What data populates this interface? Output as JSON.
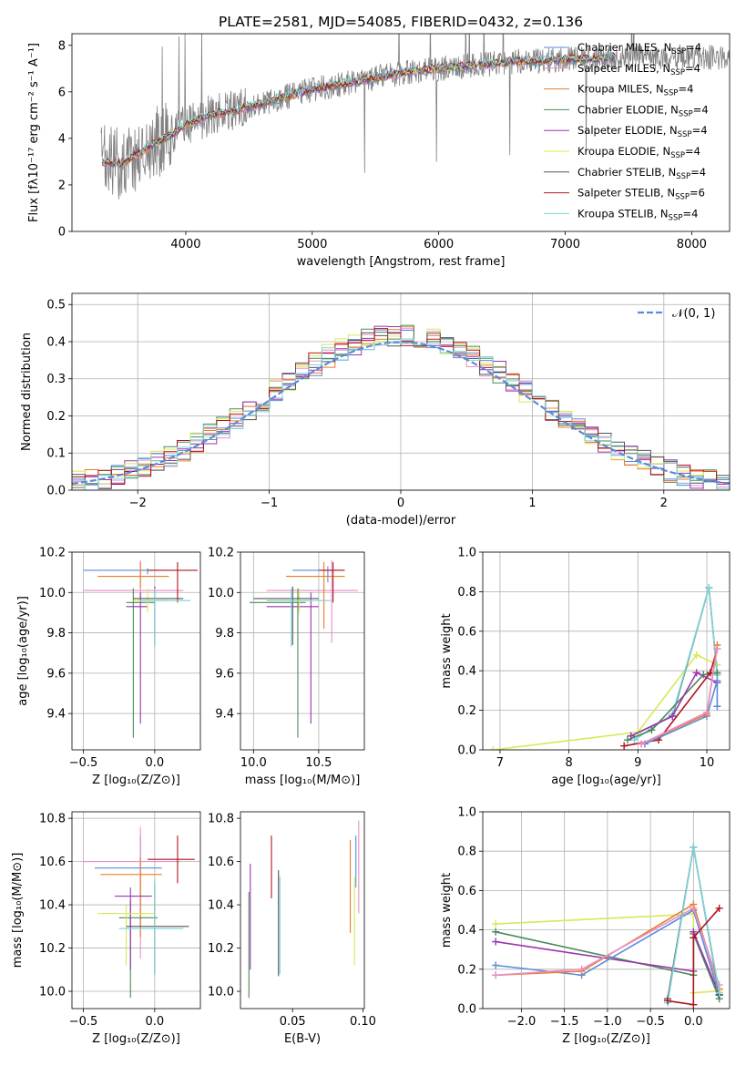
{
  "chart_data": [
    {
      "type": "line",
      "title": "PLATE=2581, MJD=54085, FIBERID=0432, z=0.136",
      "xlabel": "wavelength [Angstrom, rest frame]",
      "ylabel": "Flux [fλ10⁻¹⁷ erg cm⁻² s⁻¹ A⁻¹]",
      "xlim": [
        3100,
        8300
      ],
      "ylim": [
        0,
        8.5
      ],
      "xticks": [
        4000,
        5000,
        6000,
        7000,
        8000
      ],
      "yticks": [
        0,
        2,
        4,
        6,
        8
      ],
      "data_color": "#808080",
      "model_x": [
        3340,
        3500,
        3700,
        3900,
        4000,
        4200,
        4400,
        4600,
        4800,
        5000,
        5200,
        5400,
        5600,
        5800,
        6000,
        6200,
        6400,
        6600,
        6800,
        7000,
        7200,
        7400
      ],
      "model_y": [
        3.0,
        2.9,
        3.6,
        4.2,
        4.6,
        5.0,
        5.2,
        5.5,
        5.8,
        6.1,
        6.3,
        6.5,
        6.7,
        6.9,
        7.0,
        7.1,
        7.2,
        7.3,
        7.3,
        7.4,
        7.4,
        7.5
      ],
      "legend": [
        {
          "label": "Chabrier MILES, N",
          "sub": "SSP",
          "tail": "=4",
          "color": "#5b8bd9"
        },
        {
          "label": "Salpeter MILES, N",
          "sub": "SSP",
          "tail": "=4",
          "color": "#e88fc8"
        },
        {
          "label": "Kroupa MILES, N",
          "sub": "SSP",
          "tail": "=4",
          "color": "#e87d28"
        },
        {
          "label": "Chabrier ELODIE, N",
          "sub": "SSP",
          "tail": "=4",
          "color": "#4a8a5a"
        },
        {
          "label": "Salpeter ELODIE, N",
          "sub": "SSP",
          "tail": "=4",
          "color": "#9a35b0"
        },
        {
          "label": "Kroupa ELODIE, N",
          "sub": "SSP",
          "tail": "=4",
          "color": "#d9e855"
        },
        {
          "label": "Chabrier STELIB, N",
          "sub": "SSP",
          "tail": "=4",
          "color": "#555555"
        },
        {
          "label": "Salpeter STELIB, N",
          "sub": "SSP",
          "tail": "=6",
          "color": "#b0141e"
        },
        {
          "label": "Kroupa STELIB, N",
          "sub": "SSP",
          "tail": "=4",
          "color": "#7dd4dc"
        }
      ]
    },
    {
      "type": "line",
      "xlabel": "(data-model)/error",
      "ylabel": "Normed distribution",
      "xlim": [
        -2.5,
        2.5
      ],
      "ylim": [
        0,
        0.53
      ],
      "xticks": [
        -2,
        -1,
        0,
        1,
        2
      ],
      "xtick_labels": [
        "−2",
        "−1",
        "0",
        "1",
        "2"
      ],
      "yticks": [
        0.0,
        0.1,
        0.2,
        0.3,
        0.4,
        0.5
      ],
      "ytick_labels": [
        "0.0",
        "0.1",
        "0.2",
        "0.3",
        "0.4",
        "0.5"
      ],
      "grid": true,
      "legend_label": "𝒩(0, 1)",
      "legend_position": "top-right",
      "reference_color": "#5b8bd9"
    },
    {
      "type": "scatter",
      "xlabel": "Z [log₁₀(Z/Z⊙)]",
      "ylabel": "age  [log₁₀(age/yr)]",
      "xlim": [
        -0.58,
        0.32
      ],
      "ylim": [
        9.22,
        10.2
      ],
      "xticks": [
        -0.5,
        0.0
      ],
      "xtick_labels": [
        "−0.5",
        "0.0"
      ],
      "yticks": [
        9.4,
        9.6,
        9.8,
        10.0,
        10.2
      ],
      "ytick_labels": [
        "9.4",
        "9.6",
        "9.8",
        "10.0",
        "10.2"
      ],
      "points": [
        {
          "x": -0.05,
          "y": 10.11,
          "xe": [
            -0.5,
            0.05
          ],
          "ye": [
            10.09,
            10.12
          ],
          "color": "#5b8bd9"
        },
        {
          "x": -0.1,
          "y": 10.01,
          "xe": [
            -0.5,
            0.2
          ],
          "ye": [
            9.96,
            10.16
          ],
          "color": "#e88fc8"
        },
        {
          "x": -0.1,
          "y": 10.08,
          "xe": [
            -0.4,
            0.1
          ],
          "ye": [
            10.02,
            10.15
          ],
          "color": "#e87d28"
        },
        {
          "x": -0.15,
          "y": 9.95,
          "xe": [
            -0.2,
            0.0
          ],
          "ye": [
            9.28,
            10.02
          ],
          "color": "#4a8a5a"
        },
        {
          "x": -0.1,
          "y": 9.93,
          "xe": [
            -0.2,
            -0.05
          ],
          "ye": [
            9.35,
            10.0
          ],
          "color": "#9a35b0"
        },
        {
          "x": -0.05,
          "y": 9.96,
          "xe": [
            -0.15,
            0.1
          ],
          "ye": [
            9.9,
            10.02
          ],
          "color": "#d9e855"
        },
        {
          "x": 0.0,
          "y": 9.97,
          "xe": [
            -0.15,
            0.2
          ],
          "ye": [
            9.74,
            10.03
          ],
          "color": "#555555"
        },
        {
          "x": 0.16,
          "y": 10.11,
          "xe": [
            -0.05,
            0.3
          ],
          "ye": [
            9.95,
            10.15
          ],
          "color": "#b0141e"
        },
        {
          "x": 0.0,
          "y": 9.96,
          "xe": [
            -0.1,
            0.25
          ],
          "ye": [
            9.73,
            10.02
          ],
          "color": "#7dd4dc"
        }
      ]
    },
    {
      "type": "scatter",
      "xlabel": "mass [log₁₀(M/M⊙)]",
      "xlim": [
        9.9,
        10.85
      ],
      "ylim": [
        9.22,
        10.2
      ],
      "xticks": [
        10.0,
        10.5
      ],
      "xtick_labels": [
        "10.0",
        "10.5"
      ],
      "yticks": [
        9.4,
        9.6,
        9.8,
        10.0,
        10.2
      ],
      "ytick_labels": [
        "9.4",
        "9.6",
        "9.8",
        "10.0",
        "10.2"
      ],
      "points": [
        {
          "x": 10.57,
          "y": 10.11,
          "xe": [
            10.3,
            10.7
          ],
          "ye": [
            10.05,
            10.13
          ],
          "color": "#5b8bd9"
        },
        {
          "x": 10.6,
          "y": 10.01,
          "xe": [
            10.1,
            10.8
          ],
          "ye": [
            9.75,
            10.16
          ],
          "color": "#e88fc8"
        },
        {
          "x": 10.54,
          "y": 10.08,
          "xe": [
            10.25,
            10.7
          ],
          "ye": [
            9.82,
            10.15
          ],
          "color": "#e87d28"
        },
        {
          "x": 10.34,
          "y": 9.95,
          "xe": [
            9.97,
            10.4
          ],
          "ye": [
            9.28,
            10.02
          ],
          "color": "#4a8a5a"
        },
        {
          "x": 10.44,
          "y": 9.93,
          "xe": [
            10.1,
            10.5
          ],
          "ye": [
            9.35,
            10.0
          ],
          "color": "#9a35b0"
        },
        {
          "x": 10.35,
          "y": 9.96,
          "xe": [
            10.1,
            10.45
          ],
          "ye": [
            9.9,
            10.02
          ],
          "color": "#d9e855"
        },
        {
          "x": 10.3,
          "y": 9.97,
          "xe": [
            10.0,
            10.5
          ],
          "ye": [
            9.74,
            10.03
          ],
          "color": "#555555"
        },
        {
          "x": 10.61,
          "y": 10.11,
          "xe": [
            10.5,
            10.7
          ],
          "ye": [
            9.95,
            10.15
          ],
          "color": "#b0141e"
        },
        {
          "x": 10.29,
          "y": 9.96,
          "xe": [
            10.1,
            10.6
          ],
          "ye": [
            9.73,
            10.02
          ],
          "color": "#7dd4dc"
        }
      ]
    },
    {
      "type": "line",
      "xlabel": "age  [log₁₀(age/yr)]",
      "ylabel": "mass weight",
      "xlim": [
        6.75,
        10.33
      ],
      "ylim": [
        0,
        1
      ],
      "xticks": [
        7,
        8,
        9,
        10
      ],
      "yticks": [
        0.0,
        0.2,
        0.4,
        0.6,
        0.8,
        1.0
      ],
      "ytick_labels": [
        "0.0",
        "0.2",
        "0.4",
        "0.6",
        "0.8",
        "1.0"
      ],
      "series": [
        {
          "color": "#d9e855",
          "x": [
            6.9,
            9.0,
            9.85,
            10.15
          ],
          "y": [
            0.0,
            0.09,
            0.48,
            0.43
          ]
        },
        {
          "color": "#555555",
          "x": [
            8.9,
            9.5,
            10.03,
            10.15
          ],
          "y": [
            0.07,
            0.17,
            0.82,
            0.38
          ]
        },
        {
          "color": "#7dd4dc",
          "x": [
            8.95,
            9.5,
            10.03,
            10.15
          ],
          "y": [
            0.05,
            0.18,
            0.82,
            0.38
          ]
        },
        {
          "color": "#4a8a5a",
          "x": [
            8.85,
            9.2,
            9.95,
            10.15
          ],
          "y": [
            0.05,
            0.1,
            0.38,
            0.39
          ]
        },
        {
          "color": "#9a35b0",
          "x": [
            8.9,
            9.5,
            9.85,
            10.15
          ],
          "y": [
            0.07,
            0.17,
            0.39,
            0.34
          ]
        },
        {
          "color": "#b0141e",
          "x": [
            8.8,
            9.3,
            10.05,
            10.15
          ],
          "y": [
            0.02,
            0.05,
            0.39,
            0.51
          ]
        },
        {
          "color": "#5b8bd9",
          "x": [
            9.1,
            10.0,
            10.15,
            10.15
          ],
          "y": [
            0.03,
            0.17,
            0.35,
            0.22
          ]
        },
        {
          "color": "#e87d28",
          "x": [
            9.05,
            10.0,
            10.15
          ],
          "y": [
            0.03,
            0.18,
            0.53
          ]
        },
        {
          "color": "#e88fc8",
          "x": [
            9.05,
            10.0,
            10.15
          ],
          "y": [
            0.03,
            0.19,
            0.51
          ]
        }
      ]
    },
    {
      "type": "scatter",
      "xlabel": "Z [log₁₀(Z/Z⊙)]",
      "ylabel": "mass [log₁₀(M/M⊙)]",
      "xlim": [
        -0.58,
        0.32
      ],
      "ylim": [
        9.92,
        10.83
      ],
      "xticks": [
        -0.5,
        0.0
      ],
      "xtick_labels": [
        "−0.5",
        "0.0"
      ],
      "yticks": [
        10.0,
        10.2,
        10.4,
        10.6,
        10.8
      ],
      "ytick_labels": [
        "10.0",
        "10.2",
        "10.4",
        "10.6",
        "10.8"
      ],
      "points": [
        {
          "x": -0.1,
          "y": 10.57,
          "xe": [
            -0.42,
            0.05
          ],
          "ye": [
            10.3,
            10.72
          ],
          "color": "#5b8bd9"
        },
        {
          "x": -0.1,
          "y": 10.6,
          "xe": [
            -0.5,
            0.18
          ],
          "ye": [
            10.15,
            10.76
          ],
          "color": "#e88fc8"
        },
        {
          "x": -0.1,
          "y": 10.54,
          "xe": [
            -0.38,
            0.05
          ],
          "ye": [
            10.25,
            10.62
          ],
          "color": "#e87d28"
        },
        {
          "x": -0.17,
          "y": 10.34,
          "xe": [
            -0.25,
            0.02
          ],
          "ye": [
            9.97,
            10.42
          ],
          "color": "#4a8a5a"
        },
        {
          "x": -0.17,
          "y": 10.44,
          "xe": [
            -0.28,
            -0.02
          ],
          "ye": [
            10.1,
            10.48
          ],
          "color": "#9a35b0"
        },
        {
          "x": -0.2,
          "y": 10.36,
          "xe": [
            -0.4,
            0.0
          ],
          "ye": [
            10.12,
            10.4
          ],
          "color": "#d9e855"
        },
        {
          "x": 0.0,
          "y": 10.3,
          "xe": [
            -0.2,
            0.24
          ],
          "ye": [
            10.08,
            10.5
          ],
          "color": "#555555"
        },
        {
          "x": 0.16,
          "y": 10.61,
          "xe": [
            -0.05,
            0.28
          ],
          "ye": [
            10.5,
            10.72
          ],
          "color": "#b0141e"
        },
        {
          "x": 0.0,
          "y": 10.29,
          "xe": [
            -0.25,
            0.2
          ],
          "ye": [
            10.07,
            10.52
          ],
          "color": "#7dd4dc"
        }
      ]
    },
    {
      "type": "scatter",
      "xlabel": "E(B-V)",
      "xlim": [
        0.013,
        0.101
      ],
      "ylim": [
        9.92,
        10.83
      ],
      "xticks": [
        0.05,
        0.1
      ],
      "xtick_labels": [
        "0.05",
        "0.10"
      ],
      "yticks": [
        10.0,
        10.2,
        10.4,
        10.6,
        10.8
      ],
      "ytick_labels": [
        "10.0",
        "10.2",
        "10.4",
        "10.6",
        "10.8"
      ],
      "points": [
        {
          "x": 0.095,
          "y": 10.6,
          "ye": [
            10.48,
            10.72
          ],
          "color": "#5b8bd9"
        },
        {
          "x": 0.097,
          "y": 10.58,
          "ye": [
            10.36,
            10.79
          ],
          "color": "#e88fc8"
        },
        {
          "x": 0.091,
          "y": 10.49,
          "ye": [
            10.27,
            10.7
          ],
          "color": "#e87d28"
        },
        {
          "x": 0.019,
          "y": 10.37,
          "ye": [
            9.97,
            10.46
          ],
          "color": "#4a8a5a"
        },
        {
          "x": 0.02,
          "y": 10.35,
          "ye": [
            10.1,
            10.59
          ],
          "color": "#9a35b0"
        },
        {
          "x": 0.094,
          "y": 10.33,
          "ye": [
            10.12,
            10.53
          ],
          "color": "#d9e855"
        },
        {
          "x": 0.04,
          "y": 10.31,
          "ye": [
            10.07,
            10.56
          ],
          "color": "#555555"
        },
        {
          "x": 0.035,
          "y": 10.57,
          "ye": [
            10.43,
            10.72
          ],
          "color": "#b0141e"
        },
        {
          "x": 0.041,
          "y": 10.3,
          "ye": [
            10.08,
            10.53
          ],
          "color": "#7dd4dc"
        }
      ]
    },
    {
      "type": "line",
      "xlabel": "Z [log₁₀(Z/Z⊙)]",
      "ylabel": "mass weight",
      "xlim": [
        -2.45,
        0.42
      ],
      "ylim": [
        0,
        1
      ],
      "xticks": [
        -2.0,
        -1.5,
        -1.0,
        -0.5,
        0.0
      ],
      "xtick_labels": [
        "−2.0",
        "−1.5",
        "−1.0",
        "−0.5",
        "0.0"
      ],
      "yticks": [
        0.0,
        0.2,
        0.4,
        0.6,
        0.8,
        1.0
      ],
      "ytick_labels": [
        "0.0",
        "0.2",
        "0.4",
        "0.6",
        "0.8",
        "1.0"
      ],
      "series": [
        {
          "color": "#d9e855",
          "x": [
            -2.3,
            0.0,
            0.0,
            0.3
          ],
          "y": [
            0.43,
            0.48,
            0.08,
            0.09
          ]
        },
        {
          "color": "#4a8a5a",
          "x": [
            -2.3,
            0.0,
            0.0,
            0.3
          ],
          "y": [
            0.39,
            0.17,
            0.38,
            0.05
          ]
        },
        {
          "color": "#9a35b0",
          "x": [
            -2.3,
            0.0,
            0.0,
            0.3
          ],
          "y": [
            0.34,
            0.19,
            0.39,
            0.07
          ]
        },
        {
          "color": "#5b8bd9",
          "x": [
            -2.3,
            -1.3,
            0.0,
            0.3
          ],
          "y": [
            0.22,
            0.17,
            0.5,
            0.07
          ]
        },
        {
          "color": "#e87d28",
          "x": [
            -2.3,
            -1.3,
            0.0,
            0.3
          ],
          "y": [
            0.17,
            0.19,
            0.53,
            0.1
          ]
        },
        {
          "color": "#e88fc8",
          "x": [
            -2.3,
            -1.3,
            0.0,
            0.3
          ],
          "y": [
            0.17,
            0.2,
            0.51,
            0.12
          ]
        },
        {
          "color": "#555555",
          "x": [
            -0.3,
            0.0,
            0.3
          ],
          "y": [
            0.05,
            0.82,
            0.07
          ]
        },
        {
          "color": "#7dd4dc",
          "x": [
            -0.3,
            0.0,
            0.3
          ],
          "y": [
            0.03,
            0.82,
            0.08
          ]
        },
        {
          "color": "#b0141e",
          "x": [
            -0.3,
            0.0,
            0.0,
            0.3
          ],
          "y": [
            0.04,
            0.02,
            0.36,
            0.51
          ]
        }
      ]
    }
  ]
}
